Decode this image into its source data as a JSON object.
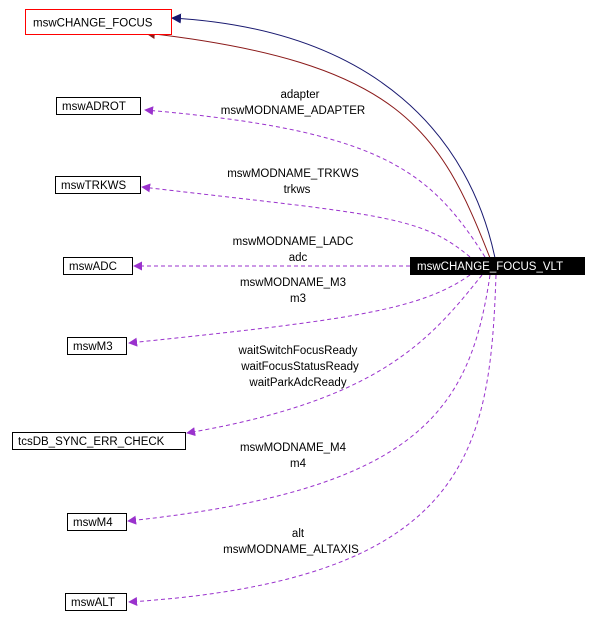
{
  "nodes": {
    "change_focus": "mswCHANGE_FOCUS",
    "change_focus_vlt": "mswCHANGE_FOCUS_VLT",
    "adrot": "mswADROT",
    "trkws": "mswTRKWS",
    "adc": "mswADC",
    "m3": "mswM3",
    "tcsdb": "tcsDB_SYNC_ERR_CHECK",
    "m4": "mswM4",
    "alt": "mswALT"
  },
  "edges": {
    "adrot": [
      "adapter",
      "mswMODNAME_ADAPTER"
    ],
    "trkws": [
      "mswMODNAME_TRKWS",
      "trkws"
    ],
    "adc": [
      "mswMODNAME_LADC",
      "adc"
    ],
    "m3": [
      "mswMODNAME_M3",
      "m3"
    ],
    "tcsdb": [
      "waitSwitchFocusReady",
      "waitFocusStatusReady",
      "waitParkAdcReady"
    ],
    "m4": [
      "mswMODNAME_M4",
      "m4"
    ],
    "alt": [
      "alt",
      "mswMODNAME_ALTAXIS"
    ]
  },
  "colors": {
    "uses_edge": "#9a32cd",
    "inherit_public": "#191970",
    "inherit_protected": "#8b1a1a",
    "highlight_node": "#000000",
    "base_border": "#ff0000"
  }
}
